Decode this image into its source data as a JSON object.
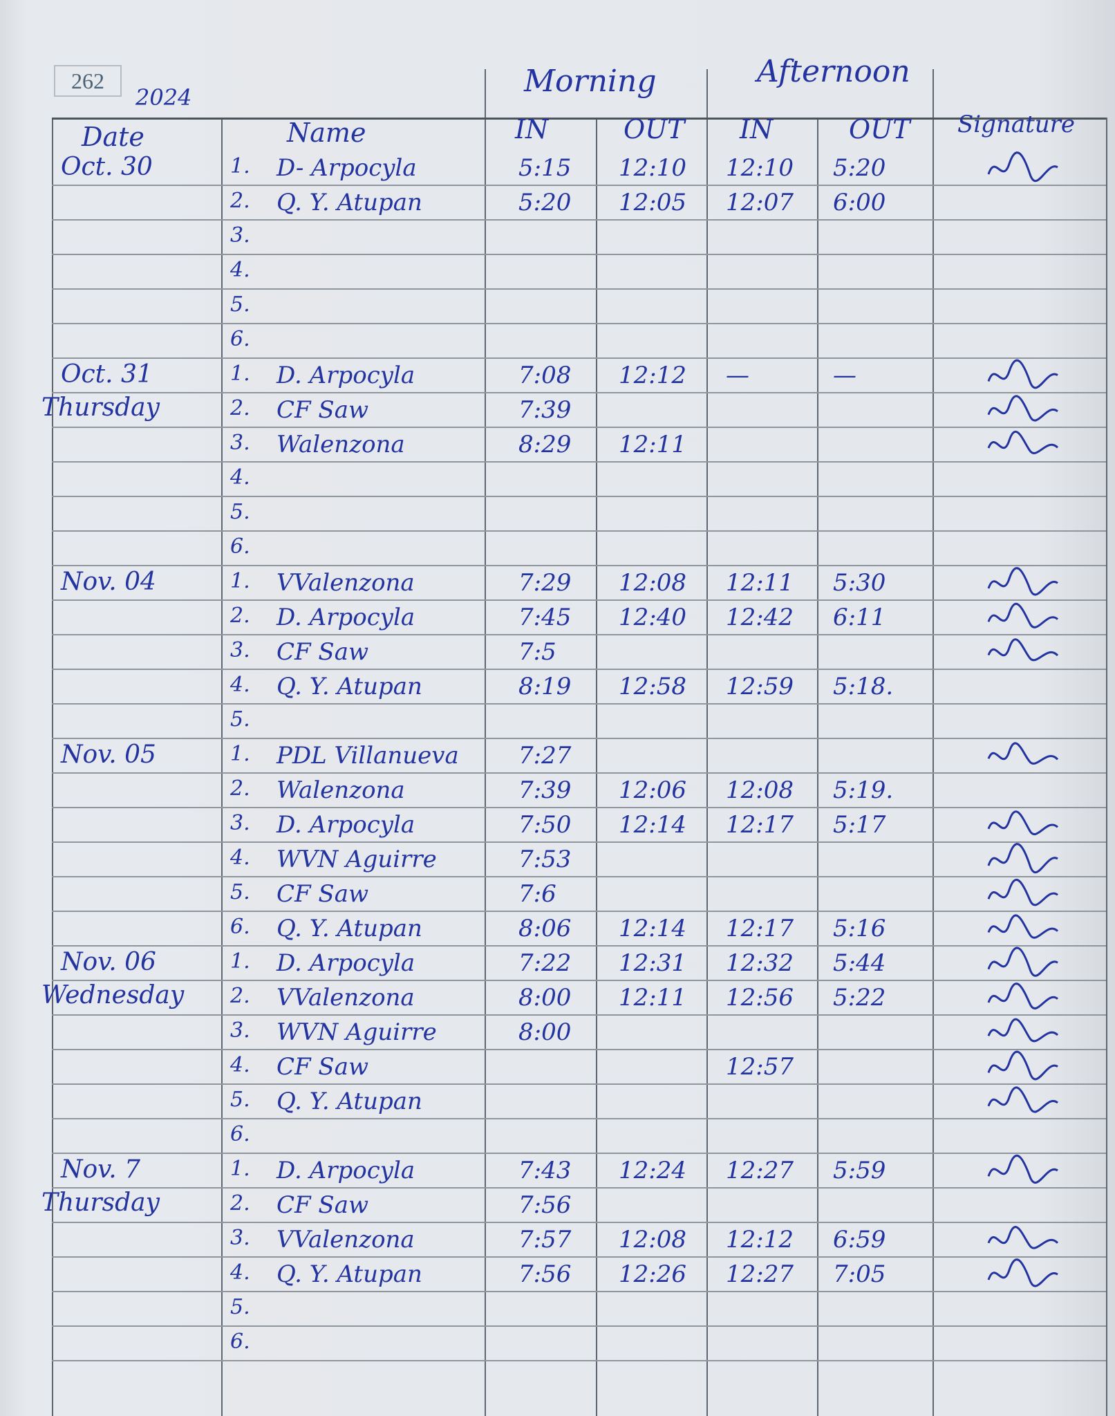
{
  "page_number": "262",
  "year": "2024",
  "groups": {
    "morning": "Morning",
    "afternoon": "Afternoon"
  },
  "columns": {
    "date": "Date",
    "name": "Name",
    "morning_in": "IN",
    "morning_out": "OUT",
    "afternoon_in": "IN",
    "afternoon_out": "OUT",
    "signature": "Signature"
  },
  "ink_color": "#2334a0",
  "sections": [
    {
      "date": "Oct. 30",
      "day": "",
      "rows": [
        {
          "no": "1.",
          "name": "D- Arpocyla",
          "m_in": "5:15",
          "m_out": "12:10",
          "a_in": "12:10",
          "a_out": "5:20",
          "signed": true
        },
        {
          "no": "2.",
          "name": "Q. Y. Atupan",
          "m_in": "5:20",
          "m_out": "12:05",
          "a_in": "12:07",
          "a_out": "6:00",
          "signed": false
        },
        {
          "no": "3.",
          "name": "",
          "m_in": "",
          "m_out": "",
          "a_in": "",
          "a_out": "",
          "signed": false
        },
        {
          "no": "4.",
          "name": "",
          "m_in": "",
          "m_out": "",
          "a_in": "",
          "a_out": "",
          "signed": false
        },
        {
          "no": "5.",
          "name": "",
          "m_in": "",
          "m_out": "",
          "a_in": "",
          "a_out": "",
          "signed": false
        },
        {
          "no": "6.",
          "name": "",
          "m_in": "",
          "m_out": "",
          "a_in": "",
          "a_out": "",
          "signed": false
        }
      ]
    },
    {
      "date": "Oct. 31",
      "day": "Thursday",
      "rows": [
        {
          "no": "1.",
          "name": "D. Arpocyla",
          "m_in": "7:08",
          "m_out": "12:12",
          "a_in": "—",
          "a_out": "—",
          "signed": true
        },
        {
          "no": "2.",
          "name": "CF Saw",
          "m_in": "7:39",
          "m_out": "",
          "a_in": "",
          "a_out": "",
          "signed": true
        },
        {
          "no": "3.",
          "name": "Walenzona",
          "m_in": "8:29",
          "m_out": "12:11",
          "a_in": "",
          "a_out": "",
          "signed": true
        },
        {
          "no": "4.",
          "name": "",
          "m_in": "",
          "m_out": "",
          "a_in": "",
          "a_out": "",
          "signed": false
        },
        {
          "no": "5.",
          "name": "",
          "m_in": "",
          "m_out": "",
          "a_in": "",
          "a_out": "",
          "signed": false
        },
        {
          "no": "6.",
          "name": "",
          "m_in": "",
          "m_out": "",
          "a_in": "",
          "a_out": "",
          "signed": false
        }
      ]
    },
    {
      "date": "Nov. 04",
      "day": "",
      "rows": [
        {
          "no": "1.",
          "name": "VValenzona",
          "m_in": "7:29",
          "m_out": "12:08",
          "a_in": "12:11",
          "a_out": "5:30",
          "signed": true
        },
        {
          "no": "2.",
          "name": "D. Arpocyla",
          "m_in": "7:45",
          "m_out": "12:40",
          "a_in": "12:42",
          "a_out": "6:11",
          "signed": true
        },
        {
          "no": "3.",
          "name": "CF Saw",
          "m_in": "7:5",
          "m_out": "",
          "a_in": "",
          "a_out": "",
          "signed": true
        },
        {
          "no": "4.",
          "name": "Q. Y. Atupan",
          "m_in": "8:19",
          "m_out": "12:58",
          "a_in": "12:59",
          "a_out": "5:18.",
          "signed": false
        },
        {
          "no": "5.",
          "name": "",
          "m_in": "",
          "m_out": "",
          "a_in": "",
          "a_out": "",
          "signed": false
        }
      ]
    },
    {
      "date": "Nov. 05",
      "day": "",
      "rows": [
        {
          "no": "1.",
          "name": "PDL Villanueva",
          "m_in": "7:27",
          "m_out": "",
          "a_in": "",
          "a_out": "",
          "signed": true
        },
        {
          "no": "2.",
          "name": "Walenzona",
          "m_in": "7:39",
          "m_out": "12:06",
          "a_in": "12:08",
          "a_out": "5:19.",
          "signed": false
        },
        {
          "no": "3.",
          "name": "D. Arpocyla",
          "m_in": "7:50",
          "m_out": "12:14",
          "a_in": "12:17",
          "a_out": "5:17",
          "signed": true
        },
        {
          "no": "4.",
          "name": "WVN Aguirre",
          "m_in": "7:53",
          "m_out": "",
          "a_in": "",
          "a_out": "",
          "signed": true
        },
        {
          "no": "5.",
          "name": "CF Saw",
          "m_in": "7:6",
          "m_out": "",
          "a_in": "",
          "a_out": "",
          "signed": true
        },
        {
          "no": "6.",
          "name": "Q. Y. Atupan",
          "m_in": "8:06",
          "m_out": "12:14",
          "a_in": "12:17",
          "a_out": "5:16",
          "signed": true
        }
      ]
    },
    {
      "date": "Nov. 06",
      "day": "Wednesday",
      "rows": [
        {
          "no": "1.",
          "name": "D. Arpocyla",
          "m_in": "7:22",
          "m_out": "12:31",
          "a_in": "12:32",
          "a_out": "5:44",
          "signed": true
        },
        {
          "no": "2.",
          "name": "VValenzona",
          "m_in": "8:00",
          "m_out": "12:11",
          "a_in": "12:56",
          "a_out": "5:22",
          "signed": true
        },
        {
          "no": "3.",
          "name": "WVN Aguirre",
          "m_in": "8:00",
          "m_out": "",
          "a_in": "",
          "a_out": "",
          "signed": true
        },
        {
          "no": "4.",
          "name": "CF Saw",
          "m_in": "",
          "m_out": "",
          "a_in": "12:57",
          "a_out": "",
          "signed": true
        },
        {
          "no": "5.",
          "name": "Q. Y. Atupan",
          "m_in": "",
          "m_out": "",
          "a_in": "",
          "a_out": "",
          "signed": true
        },
        {
          "no": "6.",
          "name": "",
          "m_in": "",
          "m_out": "",
          "a_in": "",
          "a_out": "",
          "signed": false
        }
      ]
    },
    {
      "date": "Nov. 7",
      "day": "Thursday",
      "rows": [
        {
          "no": "1.",
          "name": "D. Arpocyla",
          "m_in": "7:43",
          "m_out": "12:24",
          "a_in": "12:27",
          "a_out": "5:59",
          "signed": true
        },
        {
          "no": "2.",
          "name": "CF Saw",
          "m_in": "7:56",
          "m_out": "",
          "a_in": "",
          "a_out": "",
          "signed": false
        },
        {
          "no": "3.",
          "name": "VValenzona",
          "m_in": "7:57",
          "m_out": "12:08",
          "a_in": "12:12",
          "a_out": "6:59",
          "signed": true
        },
        {
          "no": "4.",
          "name": "Q. Y. Atupan",
          "m_in": "7:56",
          "m_out": "12:26",
          "a_in": "12:27",
          "a_out": "7:05",
          "signed": true
        },
        {
          "no": "5.",
          "name": "",
          "m_in": "",
          "m_out": "",
          "a_in": "",
          "a_out": "",
          "signed": false
        },
        {
          "no": "6.",
          "name": "",
          "m_in": "",
          "m_out": "",
          "a_in": "",
          "a_out": "",
          "signed": false
        }
      ]
    }
  ]
}
